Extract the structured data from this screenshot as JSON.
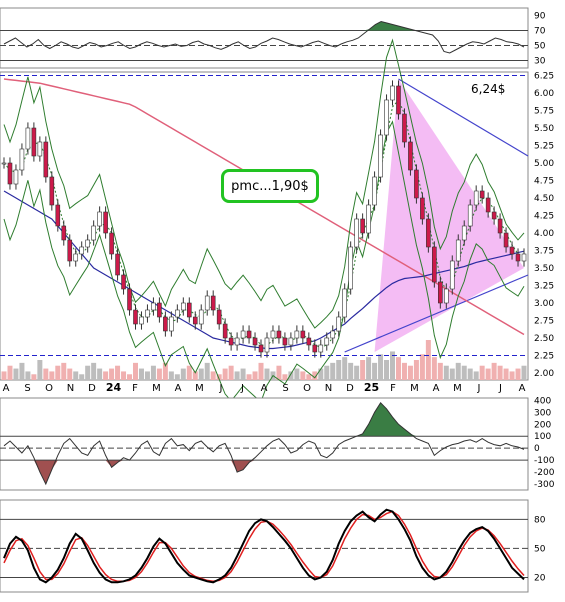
{
  "annotations": {
    "pmc_label": "pmc...1,90$",
    "price_label": "6,24$"
  },
  "chart_data": [
    {
      "type": "line",
      "name": "rsi_panel",
      "yticks": [
        "90",
        "70",
        "50",
        "30"
      ],
      "ylim": [
        20,
        100
      ],
      "reference_lines": [
        70,
        50,
        30
      ],
      "values": [
        52,
        56,
        60,
        54,
        48,
        52,
        58,
        50,
        46,
        50,
        55,
        52,
        48,
        46,
        50,
        54,
        52,
        48,
        50,
        53,
        55,
        50,
        46,
        48,
        52,
        55,
        53,
        50,
        48,
        50,
        52,
        49,
        50,
        54,
        56,
        52,
        50,
        47,
        45,
        48,
        52,
        55,
        50,
        46,
        48,
        53,
        56,
        60,
        58,
        55,
        52,
        50,
        48,
        51,
        54,
        56,
        53,
        50,
        48,
        52,
        55,
        57,
        60,
        66,
        72,
        78,
        82,
        80,
        78,
        76,
        74,
        72,
        70,
        68,
        66,
        64,
        56,
        42,
        40,
        44,
        48,
        52,
        55,
        54,
        52,
        56,
        60,
        58,
        55,
        54,
        52,
        48
      ]
    },
    {
      "type": "line",
      "name": "price_panel",
      "yticks": [
        "6.25",
        "6.00",
        "5.75",
        "5.50",
        "5.25",
        "5.00",
        "4.75",
        "4.50",
        "4.25",
        "4.00",
        "3.75",
        "3.50",
        "3.25",
        "3.00",
        "2.75",
        "2.50",
        "2.25",
        "2.00"
      ],
      "ylim": [
        1.9,
        6.3
      ],
      "x_labels": [
        "A",
        "S",
        "O",
        "N",
        "D",
        "24",
        "F",
        "M",
        "A",
        "M",
        "J",
        "J",
        "A",
        "S",
        "O",
        "N",
        "D",
        "25",
        "F",
        "M",
        "A",
        "M",
        "J",
        "J",
        "A"
      ],
      "reference_lines": [
        6.25,
        2.25
      ],
      "close": [
        5.0,
        4.7,
        4.9,
        5.2,
        5.5,
        5.1,
        5.3,
        4.8,
        4.4,
        4.1,
        3.9,
        3.6,
        3.7,
        3.8,
        3.9,
        4.1,
        4.3,
        4.0,
        3.7,
        3.4,
        3.2,
        2.9,
        2.7,
        2.8,
        2.9,
        3.0,
        2.8,
        2.6,
        2.8,
        2.9,
        3.0,
        2.8,
        2.7,
        2.9,
        3.1,
        2.9,
        2.7,
        2.5,
        2.4,
        2.5,
        2.6,
        2.5,
        2.4,
        2.3,
        2.5,
        2.6,
        2.5,
        2.4,
        2.5,
        2.6,
        2.5,
        2.4,
        2.3,
        2.4,
        2.5,
        2.6,
        2.8,
        3.2,
        3.8,
        4.2,
        4.0,
        4.4,
        4.8,
        5.4,
        5.9,
        6.1,
        5.7,
        5.3,
        4.9,
        4.5,
        4.2,
        3.8,
        3.3,
        3.0,
        3.2,
        3.6,
        3.9,
        4.1,
        4.4,
        4.6,
        4.5,
        4.3,
        4.2,
        4.0,
        3.8,
        3.7,
        3.6,
        3.7
      ],
      "volume": [
        3,
        5,
        4,
        6,
        3,
        2,
        7,
        4,
        3,
        5,
        6,
        4,
        3,
        2,
        5,
        6,
        4,
        3,
        4,
        5,
        3,
        2,
        6,
        4,
        3,
        5,
        4,
        6,
        3,
        2,
        4,
        5,
        3,
        4,
        6,
        3,
        2,
        4,
        5,
        3,
        4,
        2,
        3,
        6,
        4,
        3,
        5,
        2,
        3,
        4,
        3,
        2,
        3,
        4,
        5,
        6,
        7,
        8,
        6,
        5,
        7,
        8,
        6,
        9,
        7,
        10,
        8,
        6,
        5,
        7,
        9,
        14,
        8,
        6,
        5,
        4,
        6,
        5,
        4,
        3,
        5,
        4,
        6,
        5,
        4,
        3,
        4,
        5
      ],
      "ma_long": [
        4.6,
        4.55,
        4.5,
        4.45,
        4.4,
        4.35,
        4.3,
        4.25,
        4.2,
        4.1,
        4.0,
        3.9,
        3.8,
        3.7,
        3.6,
        3.5,
        3.45,
        3.4,
        3.35,
        3.3,
        3.25,
        3.2,
        3.15,
        3.1,
        3.05,
        3.0,
        2.95,
        2.9,
        2.85,
        2.8,
        2.75,
        2.7,
        2.65,
        2.6,
        2.55,
        2.5,
        2.48,
        2.46,
        2.44,
        2.42,
        2.4,
        2.38,
        2.37,
        2.36,
        2.35,
        2.35,
        2.36,
        2.37,
        2.38,
        2.4,
        2.42,
        2.44,
        2.46,
        2.5,
        2.55,
        2.6,
        2.65,
        2.7,
        2.78,
        2.85,
        2.92,
        3.0,
        3.08,
        3.15,
        3.22,
        3.28,
        3.32,
        3.35,
        3.36,
        3.37,
        3.38,
        3.4,
        3.42,
        3.44,
        3.46,
        3.48,
        3.5,
        3.52,
        3.55,
        3.58,
        3.6,
        3.62,
        3.64,
        3.66,
        3.68,
        3.7,
        3.72,
        3.74
      ],
      "ma_200": [
        6.2,
        6.19,
        6.18,
        6.17,
        6.16,
        6.15,
        6.14,
        6.12,
        6.1,
        6.08,
        6.06,
        6.04,
        6.02,
        6.0,
        5.98,
        5.96,
        5.94,
        5.92,
        5.9,
        5.88,
        5.86,
        5.84,
        5.8,
        5.75,
        5.7,
        5.65,
        5.6,
        5.55,
        5.5,
        5.45,
        5.4,
        5.35,
        5.3,
        5.25,
        5.2,
        5.15,
        5.1,
        5.05,
        5.0,
        4.95,
        4.9,
        4.85,
        4.8,
        4.75,
        4.7,
        4.65,
        4.6,
        4.55,
        4.5,
        4.45,
        4.4,
        4.35,
        4.3,
        4.25,
        4.2,
        4.15,
        4.1,
        4.05,
        4.0,
        3.95,
        3.9,
        3.85,
        3.8,
        3.75,
        3.7,
        3.65,
        3.6,
        3.55,
        3.5,
        3.45,
        3.4,
        3.35,
        3.3,
        3.25,
        3.2,
        3.15,
        3.1,
        3.05,
        3.0,
        2.95,
        2.9,
        2.85,
        2.8,
        2.75,
        2.7,
        2.65,
        2.6,
        2.55
      ]
    },
    {
      "type": "line",
      "name": "cci_panel",
      "yticks": [
        "400",
        "300",
        "200",
        "100",
        "0",
        "-100",
        "-200",
        "-300"
      ],
      "ylim": [
        -350,
        420
      ],
      "reference_lines": [
        100,
        0,
        -100
      ],
      "values": [
        20,
        60,
        10,
        -40,
        20,
        -80,
        -200,
        -300,
        -180,
        -60,
        40,
        80,
        20,
        -40,
        -60,
        20,
        60,
        -60,
        -160,
        -120,
        -80,
        -100,
        -40,
        30,
        60,
        -30,
        -60,
        40,
        80,
        20,
        30,
        -20,
        40,
        60,
        10,
        -30,
        20,
        40,
        -60,
        -200,
        -180,
        -120,
        -80,
        -30,
        20,
        60,
        80,
        30,
        -40,
        -20,
        30,
        60,
        40,
        -60,
        -80,
        -40,
        30,
        60,
        80,
        100,
        120,
        200,
        300,
        380,
        330,
        260,
        200,
        160,
        120,
        80,
        60,
        40,
        -60,
        -20,
        10,
        30,
        40,
        60,
        70,
        50,
        80,
        50,
        30,
        20,
        40,
        20,
        10,
        -10
      ]
    },
    {
      "type": "line",
      "name": "stochastic_panel",
      "yticks": [
        "80",
        "50",
        "20"
      ],
      "ylim": [
        5,
        100
      ],
      "reference_lines": [
        80,
        50,
        20
      ],
      "k": [
        40,
        55,
        62,
        58,
        48,
        30,
        18,
        15,
        20,
        28,
        40,
        55,
        65,
        60,
        48,
        35,
        25,
        18,
        15,
        15,
        16,
        18,
        22,
        30,
        40,
        52,
        60,
        55,
        45,
        35,
        28,
        22,
        20,
        18,
        16,
        15,
        18,
        22,
        30,
        42,
        55,
        68,
        76,
        80,
        78,
        72,
        65,
        58,
        50,
        40,
        30,
        22,
        18,
        20,
        26,
        38,
        55,
        68,
        78,
        84,
        88,
        82,
        78,
        85,
        90,
        88,
        80,
        70,
        58,
        42,
        30,
        22,
        18,
        20,
        26,
        36,
        48,
        58,
        66,
        70,
        72,
        68,
        60,
        50,
        40,
        30,
        24,
        18
      ],
      "d": [
        35,
        48,
        58,
        60,
        53,
        40,
        26,
        18,
        18,
        24,
        34,
        47,
        59,
        61,
        53,
        42,
        31,
        23,
        18,
        16,
        16,
        17,
        20,
        26,
        35,
        46,
        56,
        56,
        50,
        41,
        32,
        25,
        21,
        19,
        17,
        16,
        17,
        20,
        26,
        36,
        48,
        60,
        70,
        77,
        78,
        75,
        69,
        62,
        54,
        45,
        36,
        28,
        21,
        20,
        23,
        32,
        46,
        60,
        71,
        80,
        85,
        84,
        80,
        82,
        86,
        88,
        84,
        75,
        64,
        50,
        37,
        27,
        21,
        20,
        23,
        31,
        42,
        53,
        62,
        68,
        71,
        69,
        63,
        55,
        46,
        37,
        29,
        22
      ]
    }
  ]
}
